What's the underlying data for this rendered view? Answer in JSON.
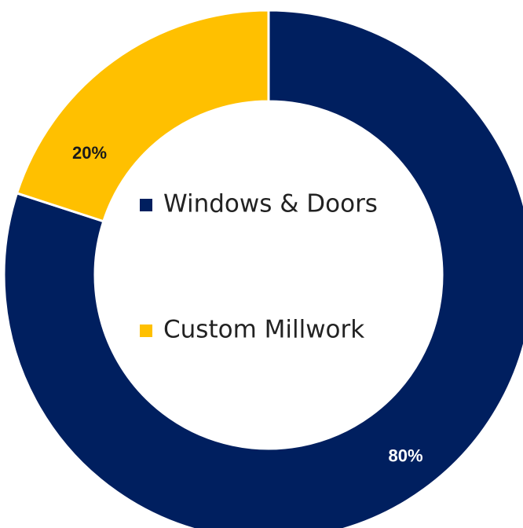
{
  "chart_data": {
    "type": "pie",
    "variant": "donut",
    "categories": [
      "Windows & Doors",
      "Custom Millwork"
    ],
    "values": [
      80,
      20
    ],
    "value_labels": [
      "80%",
      "20%"
    ],
    "colors": [
      "#001f5f",
      "#ffc000"
    ],
    "label_colors": [
      "#ffffff",
      "#1a1a1a"
    ],
    "legend_position": "center",
    "title": "",
    "start_angle_deg": 0,
    "direction": "clockwise"
  }
}
